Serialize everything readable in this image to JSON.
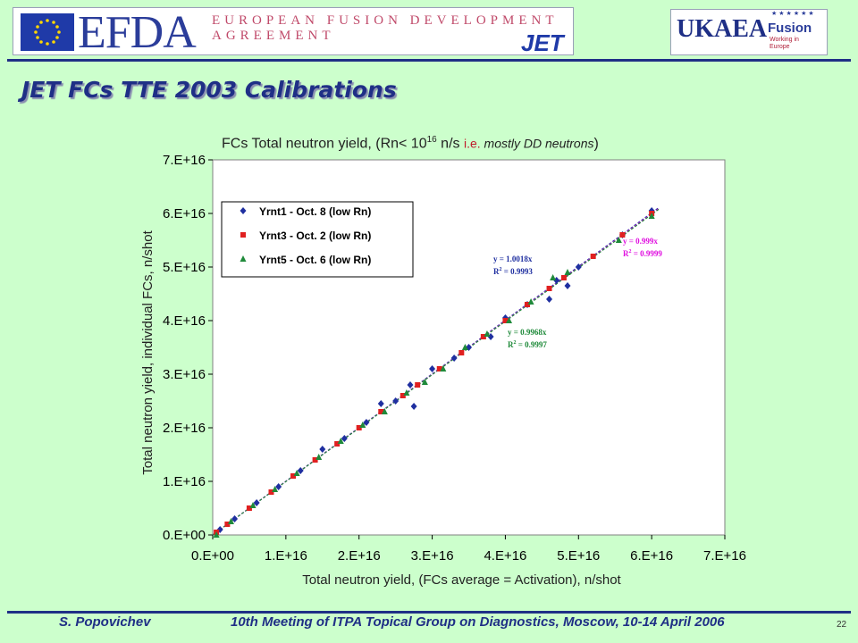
{
  "header": {
    "efda_logo": "EFDA",
    "efda_tagline": "EUROPEAN FUSION DEVELOPMENT AGREEMENT",
    "jet_logo": "JET",
    "ukaea_logo": "UKAEA",
    "fusion_logo": "Fusion",
    "fusion_tagline": "Working in Europe"
  },
  "slide": {
    "title": "JET FCs TTE 2003 Calibrations"
  },
  "footer": {
    "author": "S. Popovichev",
    "meeting": "10th Meeting of ITPA Topical Group on Diagnostics, Moscow, 10-14 April 2006",
    "page": "22"
  },
  "colors": {
    "background": "#ccffcc",
    "rule": "#1f2f86",
    "series1": "#1f2fa0",
    "series2": "#e02020",
    "series3": "#1f8a3a",
    "fit_blue": "#1f2fa0",
    "fit_green": "#1f8a3a",
    "fit_magenta": "#e010e0"
  },
  "chart_data": {
    "type": "scatter",
    "title_main": "FCs Total neutron yield, (Rn< 10",
    "title_sup": "16",
    "title_mid": " n/s ",
    "title_ie": "i.e.",
    "title_end": " mostly DD neutrons",
    "title_close": ")",
    "xlabel": "Total neutron yield, (FCs average = Activation), n/shot",
    "ylabel": "Total neutron yield, individual FCs, n/shot",
    "xlim": [
      0,
      7e+16
    ],
    "ylim": [
      0,
      7e+16
    ],
    "xticks": [
      "0.E+00",
      "1.E+16",
      "2.E+16",
      "3.E+16",
      "4.E+16",
      "5.E+16",
      "6.E+16",
      "7.E+16"
    ],
    "yticks": [
      "0.E+00",
      "1.E+16",
      "2.E+16",
      "3.E+16",
      "4.E+16",
      "5.E+16",
      "6.E+16",
      "7.E+16"
    ],
    "legend_position": "top-left",
    "series": [
      {
        "name": "Yrnt1 - Oct. 8 (low Rn)",
        "marker": "diamond",
        "fit": {
          "line1": "y = 1.0018x",
          "line2_prefix": "R",
          "line2_sup": "2",
          "line2_value": " = 0.9993"
        },
        "points": [
          [
            1000000000000000.0,
            1000000000000000.0
          ],
          [
            3000000000000000.0,
            3000000000000000.0
          ],
          [
            6000000000000000.0,
            6000000000000000.0
          ],
          [
            9000000000000000.0,
            9000000000000000.0
          ],
          [
            1.2e+16,
            1.2e+16
          ],
          [
            1.5e+16,
            1.6e+16
          ],
          [
            1.8e+16,
            1.8e+16
          ],
          [
            2.1e+16,
            2.1e+16
          ],
          [
            2.3e+16,
            2.45e+16
          ],
          [
            2.5e+16,
            2.5e+16
          ],
          [
            2.7e+16,
            2.8e+16
          ],
          [
            2.75e+16,
            2.4e+16
          ],
          [
            3e+16,
            3.1e+16
          ],
          [
            3.3e+16,
            3.3e+16
          ],
          [
            3.5e+16,
            3.5e+16
          ],
          [
            3.8e+16,
            3.7e+16
          ],
          [
            4e+16,
            4.05e+16
          ],
          [
            4.3e+16,
            4.3e+16
          ],
          [
            4.6e+16,
            4.4e+16
          ],
          [
            4.7e+16,
            4.75e+16
          ],
          [
            4.85e+16,
            4.65e+16
          ],
          [
            5e+16,
            5e+16
          ],
          [
            5.6e+16,
            5.6e+16
          ],
          [
            6e+16,
            6.05e+16
          ]
        ]
      },
      {
        "name": "Yrnt3 - Oct. 2 (low Rn)",
        "marker": "square",
        "fit": {
          "line1": "y = 0.999x",
          "line2_prefix": "R",
          "line2_sup": "2",
          "line2_value": " = 0.9999"
        },
        "points": [
          [
            500000000000000.0,
            500000000000000.0
          ],
          [
            2000000000000000.0,
            2000000000000000.0
          ],
          [
            5000000000000000.0,
            5000000000000000.0
          ],
          [
            8000000000000000.0,
            8000000000000000.0
          ],
          [
            1.1e+16,
            1.1e+16
          ],
          [
            1.4e+16,
            1.4e+16
          ],
          [
            1.7e+16,
            1.7e+16
          ],
          [
            2e+16,
            2e+16
          ],
          [
            2.3e+16,
            2.3e+16
          ],
          [
            2.6e+16,
            2.6e+16
          ],
          [
            2.8e+16,
            2.8e+16
          ],
          [
            3.1e+16,
            3.1e+16
          ],
          [
            3.4e+16,
            3.4e+16
          ],
          [
            3.7e+16,
            3.7e+16
          ],
          [
            4e+16,
            4e+16
          ],
          [
            4.3e+16,
            4.3e+16
          ],
          [
            4.6e+16,
            4.6e+16
          ],
          [
            4.8e+16,
            4.8e+16
          ],
          [
            5.2e+16,
            5.2e+16
          ],
          [
            5.6e+16,
            5.6e+16
          ],
          [
            6e+16,
            6e+16
          ]
        ]
      },
      {
        "name": "Yrnt5 - Oct. 6 (low Rn)",
        "marker": "triangle",
        "fit": {
          "line1": "y = 0.9968x",
          "line2_prefix": "R",
          "line2_sup": "2",
          "line2_value": " = 0.9997"
        },
        "points": [
          [
            500000000000000.0,
            0.0
          ],
          [
            2500000000000000.0,
            2500000000000000.0
          ],
          [
            5500000000000000.0,
            5500000000000000.0
          ],
          [
            8500000000000000.0,
            8500000000000000.0
          ],
          [
            1.15e+16,
            1.15e+16
          ],
          [
            1.45e+16,
            1.45e+16
          ],
          [
            1.75e+16,
            1.75e+16
          ],
          [
            2.05e+16,
            2.05e+16
          ],
          [
            2.35e+16,
            2.3e+16
          ],
          [
            2.65e+16,
            2.65e+16
          ],
          [
            2.9e+16,
            2.85e+16
          ],
          [
            3.15e+16,
            3.1e+16
          ],
          [
            3.45e+16,
            3.5e+16
          ],
          [
            3.75e+16,
            3.75e+16
          ],
          [
            4.05e+16,
            4e+16
          ],
          [
            4.35e+16,
            4.35e+16
          ],
          [
            4.65e+16,
            4.8e+16
          ],
          [
            4.85e+16,
            4.9e+16
          ],
          [
            5.55e+16,
            5.5e+16
          ],
          [
            6e+16,
            5.95e+16
          ]
        ]
      }
    ]
  }
}
